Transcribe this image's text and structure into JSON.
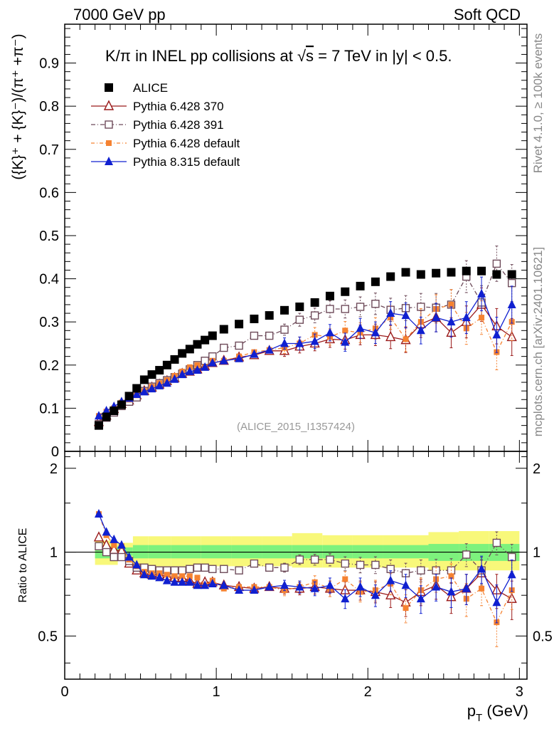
{
  "header": {
    "left": "7000 GeV pp",
    "right": "Soft QCD"
  },
  "side_text": {
    "rivet": "Rivet 4.1.0, ≥ 100k events",
    "mcplots": "mcplots.cern.ch [arXiv:2401.10621]"
  },
  "colors": {
    "alice": "#000000",
    "p370": "#9b1b1b",
    "p391": "#6e4b5a",
    "p6def": "#f58231",
    "p8def": "#1020d0",
    "band_inner": "#7df27d",
    "band_outer": "#f8f87a"
  },
  "chart_data": [
    {
      "type": "scatter",
      "panel": "main",
      "title": "K/π in INEL pp collisions at √s =  7 TeV in |y| < 0.5.",
      "title_parts": {
        "pre": "K/π in INEL pp collisions at ",
        "sqrt": "√",
        "s": "s",
        "post": " =  7 TeV in |y| < 0.5."
      },
      "ylabel": "({K}⁺ + {K}⁻)/(π⁺ +π⁻)",
      "xlabel": "p_T (GeV)",
      "xlabel_main": "p",
      "xlabel_sub": "T",
      "xlabel_unit": " (GeV)",
      "xlim": [
        0,
        3.05
      ],
      "ylim": [
        0,
        0.99
      ],
      "yticks": [
        0,
        0.1,
        0.2,
        0.3,
        0.4,
        0.5,
        0.6,
        0.7,
        0.8,
        0.9
      ],
      "ytick_labels": [
        "0",
        "0.1",
        "0.2",
        "0.3",
        "0.4",
        "0.5",
        "0.6",
        "0.7",
        "0.8",
        "0.9"
      ],
      "xticks": [
        0,
        1,
        2,
        3
      ],
      "xtick_labels": [
        "0",
        "1",
        "2",
        "3"
      ],
      "annotation": "(ALICE_2015_I1357424)",
      "x": [
        0.225,
        0.275,
        0.325,
        0.375,
        0.425,
        0.475,
        0.525,
        0.575,
        0.625,
        0.675,
        0.725,
        0.775,
        0.825,
        0.875,
        0.925,
        0.975,
        1.05,
        1.15,
        1.25,
        1.35,
        1.45,
        1.55,
        1.65,
        1.75,
        1.85,
        1.95,
        2.05,
        2.15,
        2.25,
        2.35,
        2.45,
        2.55,
        2.65,
        2.75,
        2.85,
        2.95
      ],
      "series": [
        {
          "name": "ALICE",
          "key": "alice",
          "marker": "square-filled",
          "values": [
            0.06,
            0.08,
            0.094,
            0.108,
            0.128,
            0.146,
            0.166,
            0.178,
            0.188,
            0.2,
            0.213,
            0.227,
            0.237,
            0.248,
            0.258,
            0.268,
            0.283,
            0.295,
            0.307,
            0.315,
            0.327,
            0.335,
            0.345,
            0.36,
            0.37,
            0.383,
            0.393,
            0.405,
            0.415,
            0.41,
            0.413,
            0.415,
            0.418,
            0.418,
            0.41,
            0.41
          ]
        },
        {
          "name": "Pythia 6.428 370",
          "key": "p370",
          "marker": "triangle-open",
          "values": [
            0.068,
            0.083,
            0.098,
            0.11,
            0.118,
            0.13,
            0.14,
            0.148,
            0.155,
            0.163,
            0.17,
            0.18,
            0.185,
            0.19,
            0.198,
            0.205,
            0.21,
            0.218,
            0.223,
            0.233,
            0.233,
            0.243,
            0.25,
            0.26,
            0.258,
            0.27,
            0.27,
            0.265,
            0.258,
            0.295,
            0.31,
            0.275,
            0.3,
            0.34,
            0.29,
            0.265
          ]
        },
        {
          "name": "Pythia 6.428 391",
          "key": "p391",
          "marker": "square-open",
          "values": [
            0.063,
            0.078,
            0.09,
            0.105,
            0.115,
            0.125,
            0.14,
            0.15,
            0.158,
            0.165,
            0.172,
            0.18,
            0.19,
            0.2,
            0.21,
            0.22,
            0.24,
            0.245,
            0.268,
            0.268,
            0.282,
            0.305,
            0.315,
            0.33,
            0.33,
            0.335,
            0.342,
            0.328,
            0.332,
            0.335,
            0.333,
            0.34,
            0.405,
            0.345,
            0.435,
            0.39
          ]
        },
        {
          "name": "Pythia 6.428 default",
          "key": "p6def",
          "marker": "square-filled-small",
          "values": [
            0.082,
            0.092,
            0.1,
            0.113,
            0.12,
            0.13,
            0.14,
            0.15,
            0.158,
            0.165,
            0.175,
            0.185,
            0.195,
            0.2,
            0.195,
            0.21,
            0.21,
            0.22,
            0.23,
            0.235,
            0.24,
            0.25,
            0.27,
            0.265,
            0.28,
            0.275,
            0.285,
            0.31,
            0.26,
            0.3,
            0.33,
            0.34,
            0.285,
            0.31,
            0.23,
            0.3
          ]
        },
        {
          "name": "Pythia 8.315 default",
          "key": "p8def",
          "marker": "triangle-filled",
          "values": [
            0.082,
            0.094,
            0.104,
            0.115,
            0.123,
            0.132,
            0.138,
            0.145,
            0.152,
            0.158,
            0.167,
            0.178,
            0.185,
            0.188,
            0.195,
            0.205,
            0.21,
            0.215,
            0.225,
            0.235,
            0.25,
            0.25,
            0.255,
            0.275,
            0.253,
            0.285,
            0.275,
            0.32,
            0.315,
            0.28,
            0.31,
            0.3,
            0.31,
            0.365,
            0.27,
            0.34
          ]
        }
      ]
    },
    {
      "type": "scatter",
      "panel": "ratio",
      "ylabel": "Ratio to ALICE",
      "ylim": [
        0.35,
        2.3
      ],
      "yticks": [
        0.5,
        1,
        2
      ],
      "ytick_labels": [
        "0.5",
        "1",
        "2"
      ],
      "x": [
        0.225,
        0.275,
        0.325,
        0.375,
        0.425,
        0.475,
        0.525,
        0.575,
        0.625,
        0.675,
        0.725,
        0.775,
        0.825,
        0.875,
        0.925,
        0.975,
        1.05,
        1.15,
        1.25,
        1.35,
        1.45,
        1.55,
        1.65,
        1.75,
        1.85,
        1.95,
        2.05,
        2.15,
        2.25,
        2.35,
        2.45,
        2.55,
        2.65,
        2.75,
        2.85,
        2.95
      ],
      "band_x_edges": [
        0.2,
        0.35,
        0.45,
        0.55,
        0.7,
        0.9,
        1.1,
        1.3,
        1.5,
        1.7,
        1.9,
        2.1,
        2.4,
        2.6,
        2.8,
        3.0
      ],
      "band_inner": [
        [
          0.95,
          1.05
        ],
        [
          0.97,
          1.04
        ],
        [
          0.95,
          1.06
        ],
        [
          0.95,
          1.06
        ],
        [
          0.95,
          1.06
        ],
        [
          0.95,
          1.06
        ],
        [
          0.95,
          1.06
        ],
        [
          0.95,
          1.06
        ],
        [
          0.95,
          1.06
        ],
        [
          0.95,
          1.06
        ],
        [
          0.95,
          1.06
        ],
        [
          0.95,
          1.06
        ],
        [
          0.93,
          1.07
        ],
        [
          0.93,
          1.07
        ],
        [
          0.93,
          1.07
        ]
      ],
      "band_outer": [
        [
          0.9,
          1.1
        ],
        [
          0.93,
          1.08
        ],
        [
          0.89,
          1.14
        ],
        [
          0.89,
          1.14
        ],
        [
          0.89,
          1.14
        ],
        [
          0.89,
          1.14
        ],
        [
          0.89,
          1.14
        ],
        [
          0.89,
          1.14
        ],
        [
          0.88,
          1.17
        ],
        [
          0.88,
          1.15
        ],
        [
          0.88,
          1.15
        ],
        [
          0.88,
          1.15
        ],
        [
          0.86,
          1.18
        ],
        [
          0.86,
          1.19
        ],
        [
          0.86,
          1.19
        ]
      ],
      "series": [
        {
          "name": "Pythia 6.428 370",
          "key": "p370",
          "values": [
            1.13,
            1.06,
            1.02,
            1.01,
            0.91,
            0.86,
            0.84,
            0.83,
            0.83,
            0.82,
            0.81,
            0.81,
            0.79,
            0.77,
            0.78,
            0.78,
            0.76,
            0.75,
            0.74,
            0.75,
            0.74,
            0.74,
            0.75,
            0.74,
            0.73,
            0.73,
            0.72,
            0.7,
            0.66,
            0.72,
            0.76,
            0.69,
            0.74,
            0.84,
            0.73,
            0.68
          ]
        },
        {
          "name": "Pythia 6.428 391",
          "key": "p391",
          "values": [
            1.05,
            1.0,
            0.96,
            0.96,
            0.93,
            0.88,
            0.88,
            0.87,
            0.86,
            0.86,
            0.86,
            0.86,
            0.87,
            0.88,
            0.88,
            0.87,
            0.87,
            0.86,
            0.91,
            0.88,
            0.88,
            0.94,
            0.94,
            0.94,
            0.91,
            0.9,
            0.9,
            0.87,
            0.84,
            0.86,
            0.86,
            0.86,
            0.98,
            0.86,
            1.08,
            0.96
          ]
        },
        {
          "name": "Pythia 6.428 default",
          "key": "p6def",
          "values": [
            1.37,
            1.15,
            1.06,
            1.05,
            0.94,
            0.89,
            0.85,
            0.84,
            0.84,
            0.83,
            0.82,
            0.82,
            0.82,
            0.81,
            0.76,
            0.79,
            0.74,
            0.75,
            0.75,
            0.75,
            0.73,
            0.75,
            0.78,
            0.74,
            0.8,
            0.72,
            0.73,
            0.77,
            0.63,
            0.73,
            0.8,
            0.82,
            0.68,
            0.74,
            0.56,
            0.73
          ]
        },
        {
          "name": "Pythia 8.315 default",
          "key": "p8def",
          "values": [
            1.37,
            1.18,
            1.11,
            1.06,
            0.96,
            0.9,
            0.83,
            0.82,
            0.81,
            0.79,
            0.78,
            0.78,
            0.78,
            0.76,
            0.76,
            0.77,
            0.76,
            0.73,
            0.73,
            0.75,
            0.76,
            0.75,
            0.74,
            0.76,
            0.68,
            0.75,
            0.7,
            0.79,
            0.76,
            0.68,
            0.75,
            0.72,
            0.74,
            0.87,
            0.66,
            0.83
          ]
        }
      ]
    }
  ]
}
